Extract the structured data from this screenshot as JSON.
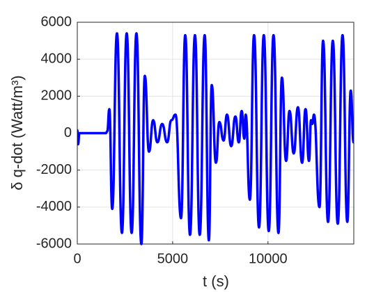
{
  "chart_data": {
    "type": "line",
    "xlabel": "t (s)",
    "ylabel": "δ q-dot (Watt/m³)",
    "x": [
      0,
      40,
      110,
      1500,
      1570,
      1680,
      1830,
      2080,
      2340,
      2590,
      2850,
      3100,
      3360,
      3540,
      3760,
      3980,
      4200,
      4450,
      4710,
      4930,
      5150,
      5440,
      5660,
      5910,
      6170,
      6420,
      6680,
      6900,
      7050,
      7270,
      7450,
      7670,
      7850,
      8070,
      8290,
      8470,
      8620,
      8760,
      8830,
      9050,
      9270,
      9530,
      9780,
      10040,
      10290,
      10550,
      10730,
      10950,
      11130,
      11350,
      11570,
      11790,
      11970,
      12150,
      12260,
      12330,
      12410,
      12700,
      12890,
      13150,
      13400,
      13660,
      13910,
      14160,
      14340,
      14490
    ],
    "series": [
      {
        "name": "δ q-dot",
        "color": "#0000ff",
        "values": [
          150,
          -600,
          0,
          0,
          100,
          1300,
          -4100,
          5400,
          -5400,
          5400,
          -5400,
          5400,
          -6000,
          3100,
          -1000,
          700,
          -500,
          500,
          -500,
          700,
          1000,
          -4600,
          5300,
          -5500,
          5300,
          -5500,
          5300,
          -5800,
          2600,
          -1600,
          600,
          -400,
          1000,
          -700,
          900,
          -500,
          1200,
          -300,
          1000,
          -3600,
          5300,
          -5100,
          5300,
          -5300,
          5300,
          -5400,
          3000,
          -1500,
          1200,
          -1100,
          1400,
          -1600,
          1300,
          -1500,
          700,
          500,
          1000,
          -4000,
          5000,
          -4800,
          5000,
          -4900,
          5300,
          -4800,
          2300,
          -500
        ]
      }
    ],
    "xlim": [
      0,
      14500
    ],
    "xticks": [
      0,
      5000,
      10000
    ],
    "ylim": [
      -6000,
      6000
    ],
    "yticks": [
      -6000,
      -4000,
      -2000,
      0,
      2000,
      4000,
      6000
    ],
    "grid": true
  }
}
